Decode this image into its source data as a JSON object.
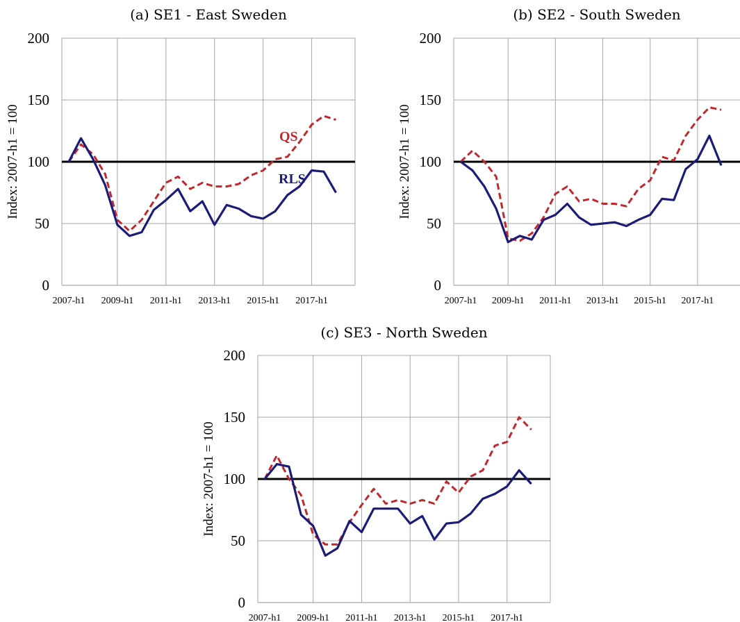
{
  "colors": {
    "rls": "#1b1b7a",
    "qs": "#c0282d",
    "reference": "#000000",
    "grid": "#a6a6a6"
  },
  "chart_data": [
    {
      "type": "line",
      "title": "(a) SE1 - East Sweden",
      "ylabel": "Index: 2007-h1 = 100",
      "xlabel": "",
      "ylim": [
        0,
        200
      ],
      "yticks": [
        0,
        50,
        100,
        150,
        200
      ],
      "xticks": [
        "2007-h1",
        "2009-h1",
        "2011-h1",
        "2013-h1",
        "2015-h1",
        "2017-h1"
      ],
      "grid": true,
      "reference_line": 100,
      "x": [
        "2007-h1",
        "2007-h2",
        "2008-h1",
        "2008-h2",
        "2009-h1",
        "2009-h2",
        "2010-h1",
        "2010-h2",
        "2011-h1",
        "2011-h2",
        "2012-h1",
        "2012-h2",
        "2013-h1",
        "2013-h2",
        "2014-h1",
        "2014-h2",
        "2015-h1",
        "2015-h2",
        "2016-h1",
        "2016-h2",
        "2017-h1",
        "2017-h2",
        "2018-h1",
        "2018-h2"
      ],
      "series": [
        {
          "name": "QS",
          "style": "dashed",
          "values": [
            100,
            114,
            106,
            90,
            53,
            44,
            53,
            68,
            83,
            88,
            78,
            83,
            80,
            80,
            82,
            89,
            93,
            102,
            104,
            116,
            130,
            137,
            134,
            null
          ]
        },
        {
          "name": "RLS",
          "style": "solid",
          "values": [
            100,
            119,
            102,
            81,
            49,
            40,
            43,
            61,
            69,
            78,
            60,
            68,
            49,
            65,
            62,
            56,
            54,
            60,
            73,
            80,
            93,
            92,
            75,
            null
          ]
        }
      ],
      "annotations": [
        "QS",
        "RLS"
      ]
    },
    {
      "type": "line",
      "title": "(b) SE2 - South Sweden",
      "ylabel": "Index: 2007-h1 = 100",
      "xlabel": "",
      "ylim": [
        0,
        200
      ],
      "yticks": [
        0,
        50,
        100,
        150,
        200
      ],
      "xticks": [
        "2007-h1",
        "2009-h1",
        "2011-h1",
        "2013-h1",
        "2015-h1",
        "2017-h1"
      ],
      "grid": true,
      "reference_line": 100,
      "x": [
        "2007-h1",
        "2007-h2",
        "2008-h1",
        "2008-h2",
        "2009-h1",
        "2009-h2",
        "2010-h1",
        "2010-h2",
        "2011-h1",
        "2011-h2",
        "2012-h1",
        "2012-h2",
        "2013-h1",
        "2013-h2",
        "2014-h1",
        "2014-h2",
        "2015-h1",
        "2015-h2",
        "2016-h1",
        "2016-h2",
        "2017-h1",
        "2017-h2",
        "2018-h1",
        "2018-h2"
      ],
      "series": [
        {
          "name": "QS",
          "style": "dashed",
          "values": [
            100,
            109,
            100,
            88,
            38,
            36,
            42,
            55,
            74,
            80,
            68,
            70,
            66,
            66,
            64,
            78,
            85,
            104,
            101,
            121,
            134,
            144,
            142,
            null
          ]
        },
        {
          "name": "RLS",
          "style": "solid",
          "values": [
            100,
            93,
            80,
            62,
            35,
            40,
            37,
            53,
            57,
            66,
            55,
            49,
            50,
            51,
            48,
            53,
            57,
            70,
            69,
            94,
            102,
            121,
            97,
            null
          ]
        }
      ]
    },
    {
      "type": "line",
      "title": "(c) SE3 - North Sweden",
      "ylabel": "Index: 2007-h1 = 100",
      "xlabel": "",
      "ylim": [
        0,
        200
      ],
      "yticks": [
        0,
        50,
        100,
        150,
        200
      ],
      "xticks": [
        "2007-h1",
        "2009-h1",
        "2011-h1",
        "2013-h1",
        "2015-h1",
        "2017-h1"
      ],
      "grid": true,
      "reference_line": 100,
      "x": [
        "2007-h1",
        "2007-h2",
        "2008-h1",
        "2008-h2",
        "2009-h1",
        "2009-h2",
        "2010-h1",
        "2010-h2",
        "2011-h1",
        "2011-h2",
        "2012-h1",
        "2012-h2",
        "2013-h1",
        "2013-h2",
        "2014-h1",
        "2014-h2",
        "2015-h1",
        "2015-h2",
        "2016-h1",
        "2016-h2",
        "2017-h1",
        "2017-h2",
        "2018-h1",
        "2018-h2"
      ],
      "series": [
        {
          "name": "QS",
          "style": "dashed",
          "values": [
            100,
            119,
            100,
            87,
            55,
            47,
            47,
            65,
            79,
            92,
            80,
            83,
            80,
            83,
            80,
            98,
            89,
            102,
            107,
            127,
            130,
            150,
            140,
            null
          ]
        },
        {
          "name": "RLS",
          "style": "solid",
          "values": [
            100,
            112,
            110,
            71,
            62,
            38,
            44,
            66,
            57,
            76,
            76,
            76,
            64,
            70,
            51,
            64,
            65,
            72,
            84,
            88,
            94,
            107,
            96,
            null
          ]
        }
      ]
    }
  ]
}
